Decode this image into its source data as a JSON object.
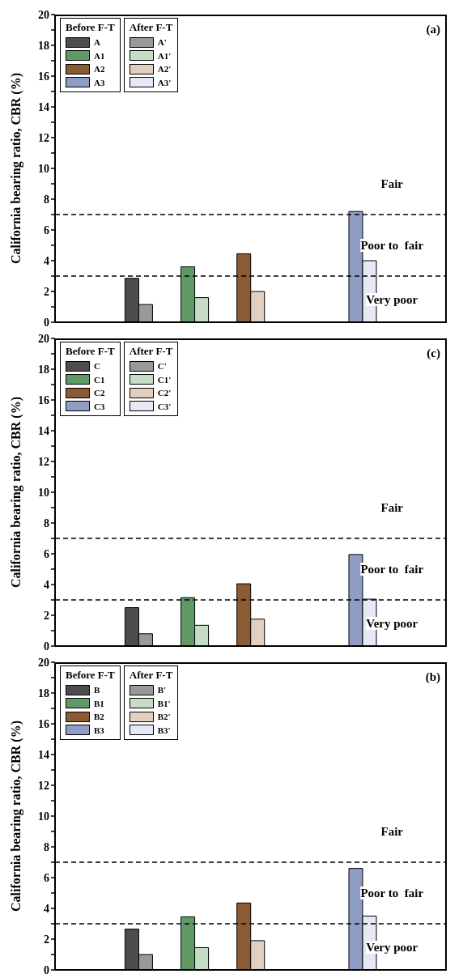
{
  "chart_data": [
    {
      "type": "bar",
      "title": "(a)",
      "ylabel": "California bearing ratio, CBR (%)",
      "categories": [
        null,
        null,
        null,
        null,
        null,
        null,
        null
      ],
      "series": [
        {
          "name": "A",
          "color": "#4d4d4d",
          "values": [
            null,
            2.85,
            null,
            null,
            null,
            null,
            null
          ]
        },
        {
          "name": "A1",
          "color": "#5f9966",
          "values": [
            null,
            null,
            3.6,
            null,
            null,
            null,
            null
          ]
        },
        {
          "name": "A2",
          "color": "#8c5a33",
          "values": [
            null,
            null,
            null,
            4.45,
            null,
            null,
            null
          ]
        },
        {
          "name": "A3",
          "color": "#8f9cc4",
          "values": [
            null,
            null,
            null,
            null,
            null,
            7.2,
            null
          ]
        },
        {
          "name": "A'",
          "color": "#999999",
          "values": [
            null,
            1.15,
            null,
            null,
            null,
            null,
            null
          ]
        },
        {
          "name": "A1'",
          "color": "#c6dcc6",
          "values": [
            null,
            null,
            1.6,
            null,
            null,
            null,
            null
          ]
        },
        {
          "name": "A2'",
          "color": "#e3cfbf",
          "values": [
            null,
            null,
            null,
            2.0,
            null,
            null,
            null
          ]
        },
        {
          "name": "A3'",
          "color": "#e6e9f5",
          "values": [
            null,
            null,
            null,
            null,
            null,
            4.0,
            null
          ]
        }
      ],
      "ylim": [
        0,
        20
      ],
      "yticks": [
        0,
        {
          "value": 1,
          "label": null
        },
        2,
        {
          "value": 3,
          "label": null
        },
        4,
        {
          "value": 5,
          "label": null
        },
        6,
        {
          "value": 7,
          "label": null
        },
        8,
        {
          "value": 9,
          "label": null
        },
        10,
        {
          "value": 11,
          "label": null
        },
        12,
        {
          "value": 13,
          "label": null
        },
        14,
        {
          "value": 15,
          "label": null
        },
        16,
        {
          "value": 17,
          "label": null
        },
        18,
        {
          "value": 19,
          "label": null
        },
        20
      ],
      "ref_lines": [
        {
          "axis": "y",
          "value": 3,
          "color": "#000000",
          "line_style": "dashed"
        },
        {
          "axis": "y",
          "value": 7,
          "color": "#000000",
          "line_style": "dashed"
        }
      ],
      "annotations": [
        "Before F-T",
        "After F-T",
        "Fair",
        "Poor to  fair",
        "Very poor"
      ],
      "legend": "top left",
      "grid": false
    },
    {
      "type": "bar",
      "title": "(c)",
      "ylabel": "California bearing ratio, CBR (%)",
      "categories": [
        null,
        null,
        null,
        null,
        null,
        null,
        null
      ],
      "series": [
        {
          "name": "C",
          "color": "#4d4d4d",
          "values": [
            null,
            2.5,
            null,
            null,
            null,
            null,
            null
          ]
        },
        {
          "name": "C1",
          "color": "#5f9966",
          "values": [
            null,
            null,
            3.15,
            null,
            null,
            null,
            null
          ]
        },
        {
          "name": "C2",
          "color": "#8c5a33",
          "values": [
            null,
            null,
            null,
            4.05,
            null,
            null,
            null
          ]
        },
        {
          "name": "C3",
          "color": "#8f9cc4",
          "values": [
            null,
            null,
            null,
            null,
            null,
            5.95,
            null
          ]
        },
        {
          "name": "C'",
          "color": "#999999",
          "values": [
            null,
            0.8,
            null,
            null,
            null,
            null,
            null
          ]
        },
        {
          "name": "C1'",
          "color": "#c6dcc6",
          "values": [
            null,
            null,
            1.35,
            null,
            null,
            null,
            null
          ]
        },
        {
          "name": "C2'",
          "color": "#e3cfbf",
          "values": [
            null,
            null,
            null,
            1.75,
            null,
            null,
            null
          ]
        },
        {
          "name": "C3'",
          "color": "#e6e9f5",
          "values": [
            null,
            null,
            null,
            null,
            null,
            3.05,
            null
          ]
        }
      ],
      "ylim": [
        0,
        20
      ],
      "yticks": [
        0,
        {
          "value": 1,
          "label": null
        },
        2,
        {
          "value": 3,
          "label": null
        },
        4,
        {
          "value": 5,
          "label": null
        },
        6,
        {
          "value": 7,
          "label": null
        },
        8,
        {
          "value": 9,
          "label": null
        },
        10,
        {
          "value": 11,
          "label": null
        },
        12,
        {
          "value": 13,
          "label": null
        },
        14,
        {
          "value": 15,
          "label": null
        },
        16,
        {
          "value": 17,
          "label": null
        },
        18,
        {
          "value": 19,
          "label": null
        },
        20
      ],
      "ref_lines": [
        {
          "axis": "y",
          "value": 3,
          "color": "#000000",
          "line_style": "dashed"
        },
        {
          "axis": "y",
          "value": 7,
          "color": "#000000",
          "line_style": "dashed"
        }
      ],
      "annotations": [
        "Before F-T",
        "After F-T",
        "Fair",
        "Poor to  fair",
        "Very poor"
      ],
      "legend": "top left",
      "grid": false
    },
    {
      "type": "bar",
      "title": "(b)",
      "ylabel": "California bearing ratio, CBR (%)",
      "categories": [
        null,
        null,
        null,
        null,
        null,
        null,
        null
      ],
      "series": [
        {
          "name": "B",
          "color": "#4d4d4d",
          "values": [
            null,
            2.65,
            null,
            null,
            null,
            null,
            null
          ]
        },
        {
          "name": "B1",
          "color": "#5f9966",
          "values": [
            null,
            null,
            3.45,
            null,
            null,
            null,
            null
          ]
        },
        {
          "name": "B2",
          "color": "#8c5a33",
          "values": [
            null,
            null,
            null,
            4.35,
            null,
            null,
            null
          ]
        },
        {
          "name": "B3",
          "color": "#8f9cc4",
          "values": [
            null,
            null,
            null,
            null,
            null,
            6.6,
            null
          ]
        },
        {
          "name": "B'",
          "color": "#999999",
          "values": [
            null,
            1.0,
            null,
            null,
            null,
            null,
            null
          ]
        },
        {
          "name": "B1'",
          "color": "#c6dcc6",
          "values": [
            null,
            null,
            1.45,
            null,
            null,
            null,
            null
          ]
        },
        {
          "name": "B2'",
          "color": "#e3cfbf",
          "values": [
            null,
            null,
            null,
            1.9,
            null,
            null,
            null
          ]
        },
        {
          "name": "B3'",
          "color": "#e6e9f5",
          "values": [
            null,
            null,
            null,
            null,
            null,
            3.5,
            null
          ]
        }
      ],
      "ylim": [
        0,
        20
      ],
      "yticks": [
        0,
        {
          "value": 1,
          "label": null
        },
        2,
        {
          "value": 3,
          "label": null
        },
        4,
        {
          "value": 5,
          "label": null
        },
        6,
        {
          "value": 7,
          "label": null
        },
        8,
        {
          "value": 9,
          "label": null
        },
        10,
        {
          "value": 11,
          "label": null
        },
        12,
        {
          "value": 13,
          "label": null
        },
        14,
        {
          "value": 15,
          "label": null
        },
        16,
        {
          "value": 17,
          "label": null
        },
        18,
        {
          "value": 19,
          "label": null
        },
        20
      ],
      "ref_lines": [
        {
          "axis": "y",
          "value": 3,
          "color": "#000000",
          "line_style": "dashed"
        },
        {
          "axis": "y",
          "value": 7,
          "color": "#000000",
          "line_style": "dashed"
        }
      ],
      "annotations": [
        "Before F-T",
        "After F-T",
        "Fair",
        "Poor to  fair",
        "Very poor"
      ],
      "legend": "top left",
      "grid": false
    }
  ]
}
